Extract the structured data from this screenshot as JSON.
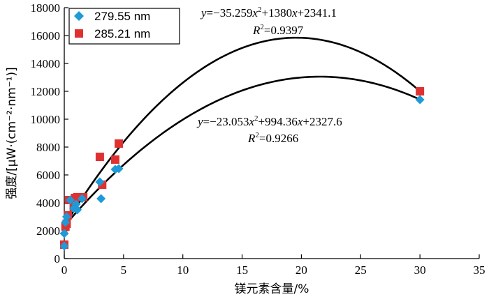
{
  "chart_data": {
    "type": "scatter",
    "xlabel": "镁元素含量/%",
    "ylabel": "强度/[μW·(cm⁻²·nm⁻¹)]",
    "xlim": [
      0,
      35
    ],
    "ylim": [
      0,
      18000
    ],
    "x_ticks": [
      "0",
      "5",
      "10",
      "15",
      "20",
      "25",
      "30",
      "35"
    ],
    "y_ticks": [
      "0",
      "2000",
      "4000",
      "6000",
      "8000",
      "10000",
      "12000",
      "14000",
      "16000",
      "18000"
    ],
    "x_tick_values": [
      0,
      5,
      10,
      15,
      20,
      25,
      30,
      35
    ],
    "y_tick_values": [
      0,
      2000,
      4000,
      6000,
      8000,
      10000,
      12000,
      14000,
      16000,
      18000
    ],
    "grid": false,
    "legend_position": "top-left",
    "series": [
      {
        "name": "279.55  nm",
        "marker": "diamond",
        "color": "#1e9ad6",
        "points": [
          [
            0,
            900
          ],
          [
            0,
            1800
          ],
          [
            0.1,
            2600
          ],
          [
            0.2,
            3000
          ],
          [
            0.5,
            4200
          ],
          [
            0.8,
            3600
          ],
          [
            1.0,
            3900
          ],
          [
            1.1,
            3500
          ],
          [
            1.5,
            4300
          ],
          [
            3.0,
            5500
          ],
          [
            3.1,
            4300
          ],
          [
            4.3,
            6400
          ],
          [
            4.6,
            6450
          ],
          [
            30.0,
            11400
          ]
        ]
      },
      {
        "name": "285.21  nm",
        "marker": "square",
        "color": "#e03131",
        "points": [
          [
            0,
            1000
          ],
          [
            0.1,
            2300
          ],
          [
            0.2,
            2500
          ],
          [
            0.3,
            3100
          ],
          [
            0.4,
            4200
          ],
          [
            0.8,
            3700
          ],
          [
            0.9,
            4350
          ],
          [
            1.1,
            4400
          ],
          [
            1.4,
            4400
          ],
          [
            1.6,
            4400
          ],
          [
            3.0,
            7300
          ],
          [
            3.2,
            5300
          ],
          [
            4.3,
            7100
          ],
          [
            4.6,
            8250
          ],
          [
            30.0,
            12000
          ]
        ]
      }
    ],
    "trendlines": [
      {
        "series": "285.21  nm",
        "coefficients": [
          -35.259,
          1380,
          2341.1
        ],
        "x_range": [
          0,
          30
        ],
        "equation_label": {
          "y": "y",
          "eq": "=−35.259",
          "x1": "x",
          "sq": "2",
          "rest": "+1380",
          "x2": "x",
          "tail": "+2341.1"
        },
        "r2_label": {
          "R": "R",
          "sq": "2",
          "val": "=0.9397"
        }
      },
      {
        "series": "279.55  nm",
        "coefficients": [
          -23.053,
          994.36,
          2327.6
        ],
        "x_range": [
          0,
          30
        ],
        "equation_label": {
          "y": "y",
          "eq": "=−23.053",
          "x1": "x",
          "sq": "2",
          "rest": "+994.36",
          "x2": "x",
          "tail": "+2327.6"
        },
        "r2_label": {
          "R": "R",
          "sq": "2",
          "val": "=0.9266"
        }
      }
    ]
  }
}
